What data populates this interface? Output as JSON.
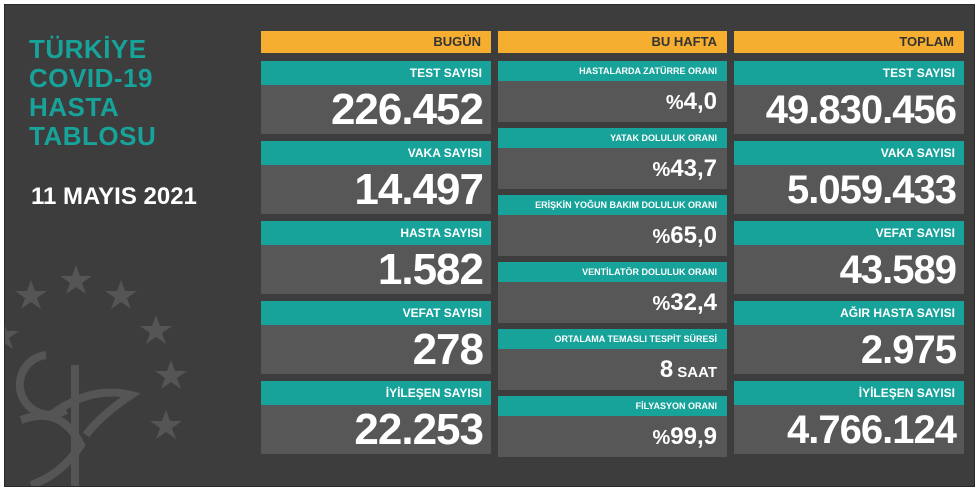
{
  "title_lines": [
    "TÜRKİYE",
    "COVID-19",
    "HASTA",
    "TABLOSU"
  ],
  "date": "11 MAYIS 2021",
  "colors": {
    "teal": "#17a39a",
    "orange": "#f5ae30",
    "bg": "#3d3d3d",
    "panel": "#575757"
  },
  "columns": {
    "today": {
      "header": "BUGÜN",
      "cards": [
        {
          "label": "TEST SAYISI",
          "value": "226.452"
        },
        {
          "label": "VAKA SAYISI",
          "value": "14.497"
        },
        {
          "label": "HASTA SAYISI",
          "value": "1.582"
        },
        {
          "label": "VEFAT SAYISI",
          "value": "278"
        },
        {
          "label": "İYİLEŞEN SAYISI",
          "value": "22.253"
        }
      ]
    },
    "week": {
      "header": "BU HAFTA",
      "cards": [
        {
          "label": "HASTALARDA ZATÜRRE ORANI",
          "prefix": "%",
          "value": "4,0",
          "unit": ""
        },
        {
          "label": "YATAK DOLULUK ORANI",
          "prefix": "%",
          "value": "43,7",
          "unit": ""
        },
        {
          "label": "ERİŞKİN YOĞUN BAKIM DOLULUK ORANI",
          "prefix": "%",
          "value": "65,0",
          "unit": ""
        },
        {
          "label": "VENTİLATÖR DOLULUK ORANI",
          "prefix": "%",
          "value": "32,4",
          "unit": ""
        },
        {
          "label": "ORTALAMA TEMASLI TESPİT SÜRESİ",
          "prefix": "",
          "value": "8",
          "unit": "SAAT"
        },
        {
          "label": "FİLYASYON ORANI",
          "prefix": "%",
          "value": "99,9",
          "unit": ""
        }
      ]
    },
    "total": {
      "header": "TOPLAM",
      "cards": [
        {
          "label": "TEST SAYISI",
          "value": "49.830.456"
        },
        {
          "label": "VAKA SAYISI",
          "value": "5.059.433"
        },
        {
          "label": "VEFAT SAYISI",
          "value": "43.589"
        },
        {
          "label": "AĞIR HASTA SAYISI",
          "value": "2.975"
        },
        {
          "label": "İYİLEŞEN SAYISI",
          "value": "4.766.124"
        }
      ]
    }
  }
}
